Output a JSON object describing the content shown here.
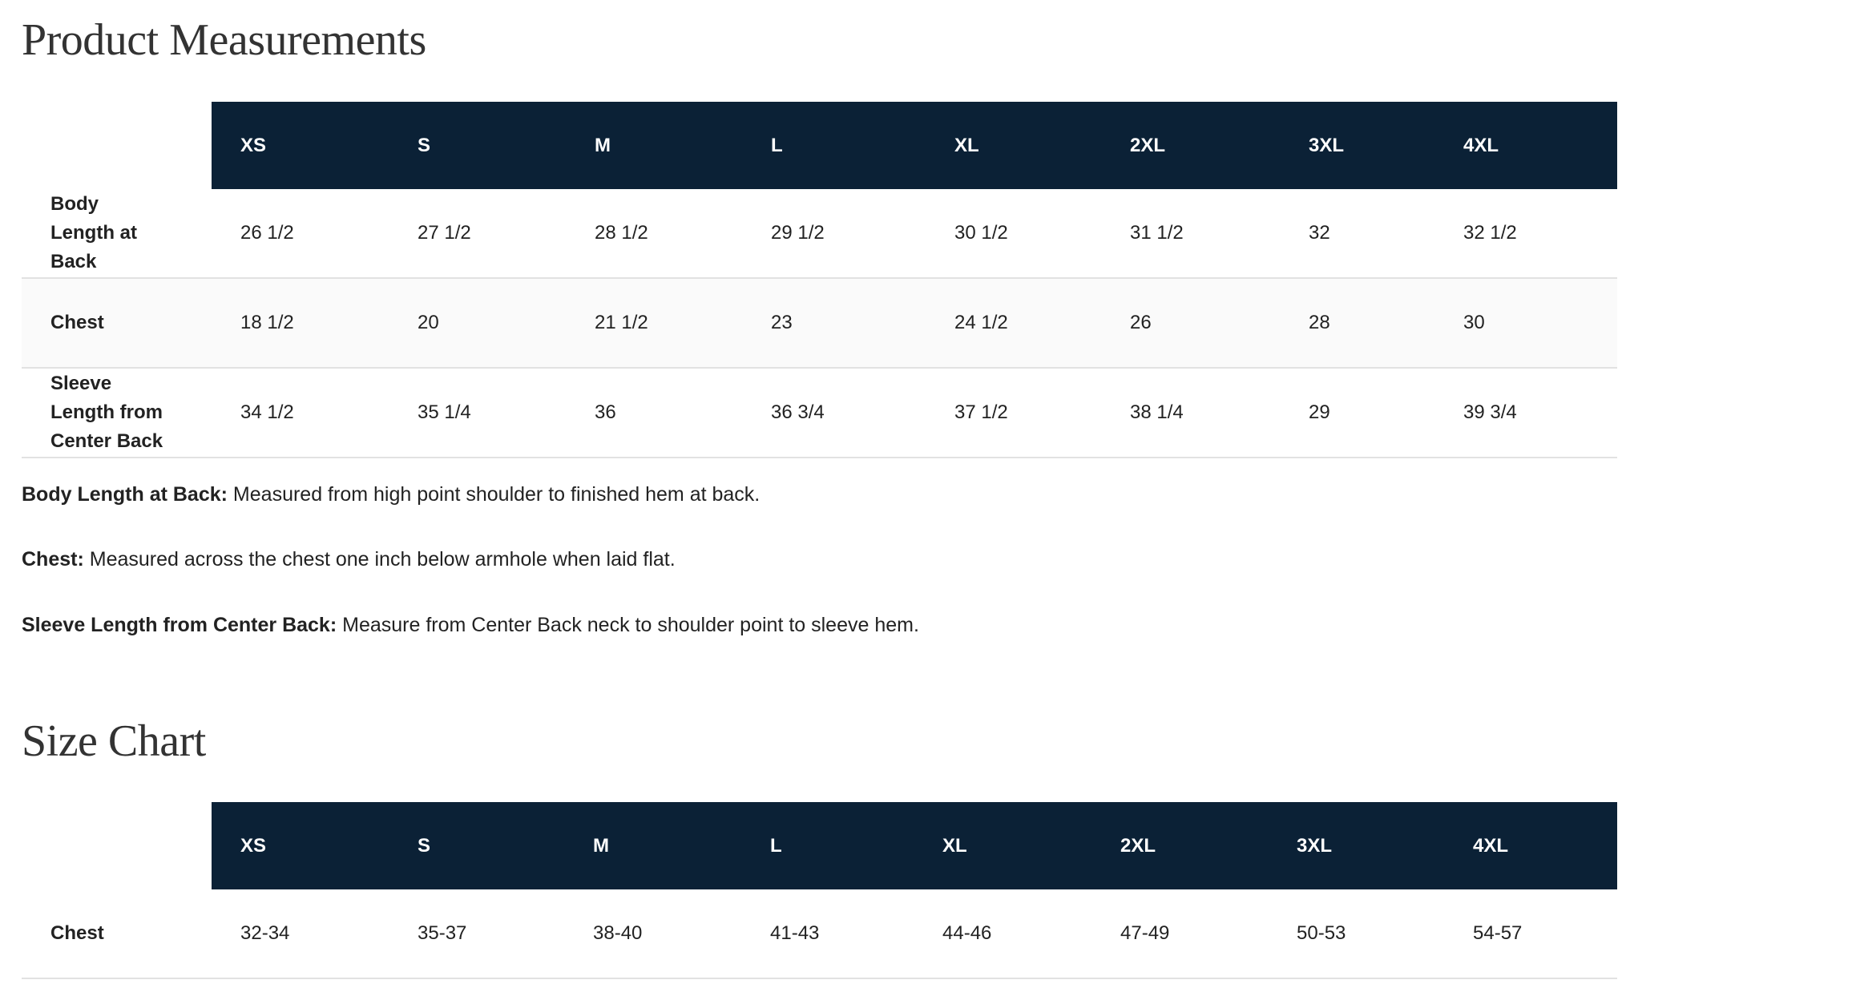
{
  "product_measurements": {
    "title": "Product Measurements",
    "sizes": [
      "XS",
      "S",
      "M",
      "L",
      "XL",
      "2XL",
      "3XL",
      "4XL"
    ],
    "rows": [
      {
        "label": "Body Length at Back",
        "values": [
          "26 1/2",
          "27 1/2",
          "28 1/2",
          "29 1/2",
          "30 1/2",
          "31 1/2",
          "32",
          "32 1/2"
        ]
      },
      {
        "label": "Chest",
        "values": [
          "18 1/2",
          "20",
          "21 1/2",
          "23",
          "24 1/2",
          "26",
          "28",
          "30"
        ]
      },
      {
        "label": "Sleeve Length from Center Back",
        "values": [
          "34 1/2",
          "35 1/4",
          "36",
          "36 3/4",
          "37 1/2",
          "38 1/4",
          "29",
          "39 3/4"
        ]
      }
    ],
    "notes": [
      {
        "term": "Body Length at Back:",
        "text": " Measured from high point shoulder to finished hem at back."
      },
      {
        "term": "Chest:",
        "text": " Measured across the chest one inch below armhole when laid flat."
      },
      {
        "term": "Sleeve Length from Center Back:",
        "text": " Measure from Center Back neck to shoulder point to sleeve hem."
      }
    ]
  },
  "size_chart": {
    "title": "Size Chart",
    "sizes": [
      "XS",
      "S",
      "M",
      "L",
      "XL",
      "2XL",
      "3XL",
      "4XL"
    ],
    "rows": [
      {
        "label": "Chest",
        "values": [
          "32-34",
          "35-37",
          "38-40",
          "41-43",
          "44-46",
          "47-49",
          "50-53",
          "54-57"
        ]
      }
    ]
  },
  "colors": {
    "header_bg": "#0b2136",
    "header_text": "#ffffff",
    "alt_row_bg": "#fafafa"
  }
}
